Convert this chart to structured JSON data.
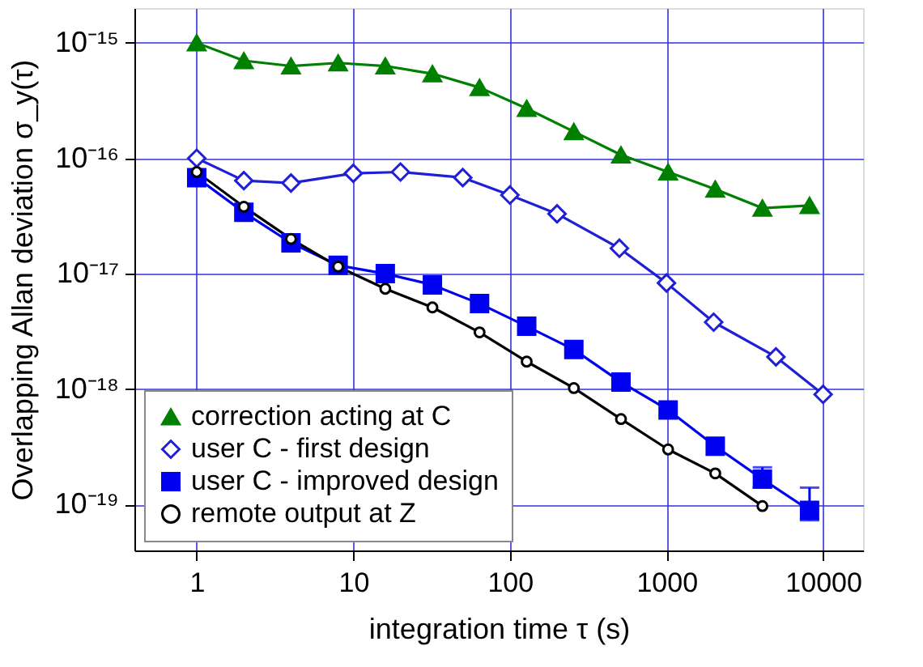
{
  "chart_data": {
    "type": "line",
    "xlabel": "integration time τ (s)",
    "ylabel": "Overlapping Allan deviation σ_y(τ)",
    "log": "xy",
    "grid": true,
    "legend": "bottom left",
    "line_style": "solid",
    "xlim": [
      0.4,
      18000
    ],
    "xticks": [
      1,
      10,
      100,
      1000,
      10000
    ],
    "ylim": [
      4e-20,
      2e-15
    ],
    "yticks": [
      {
        "value": 1e-19,
        "label": "10⁻¹⁹"
      },
      {
        "value": 1e-18,
        "label": "10⁻¹⁸"
      },
      {
        "value": 1e-17,
        "label": "10⁻¹⁷"
      },
      {
        "value": 1e-16,
        "label": "10⁻¹⁶"
      },
      {
        "value": 1e-15,
        "label": "10⁻¹⁵"
      }
    ],
    "series": [
      {
        "name": "correction acting at C",
        "color": "#008000",
        "marker": "triangle",
        "x": [
          1,
          2,
          4,
          8,
          16,
          32,
          64,
          128,
          256,
          512,
          1024,
          2048,
          4096,
          8192
        ],
        "values": [
          1e-15,
          7e-16,
          6.3e-16,
          6.7e-16,
          6.3e-16,
          5.4e-16,
          4.1e-16,
          2.7e-16,
          1.7e-16,
          1.07e-16,
          7.6e-17,
          5.4e-17,
          3.7e-17,
          3.9e-17
        ]
      },
      {
        "name": "user C - first design",
        "color": "#1f1fd6",
        "marker": "diamond",
        "x": [
          1,
          2,
          4,
          10,
          20,
          50,
          100,
          200,
          500,
          1000,
          2000,
          5000,
          10000
        ],
        "values": [
          1e-16,
          6.4e-17,
          6.1e-17,
          7.4e-17,
          7.6e-17,
          6.8e-17,
          4.8e-17,
          3.3e-17,
          1.66e-17,
          8.3e-18,
          3.8e-18,
          1.9e-18,
          9e-19
        ]
      },
      {
        "name": "user C - improved design",
        "color": "#0000f0",
        "marker": "square",
        "x": [
          1,
          2,
          4,
          8,
          16,
          32,
          64,
          128,
          256,
          512,
          1024,
          2048,
          4096,
          8192
        ],
        "values": [
          6.8e-17,
          3.4e-17,
          1.85e-17,
          1.18e-17,
          1e-17,
          8e-18,
          5.5e-18,
          3.5e-18,
          2.2e-18,
          1.15e-18,
          6.6e-19,
          3.2e-19,
          1.66e-19,
          8.9e-20
        ],
        "errors": [
          null,
          null,
          null,
          null,
          null,
          null,
          null,
          null,
          null,
          null,
          null,
          null,
          [
            1.4e-19,
            2.1e-19
          ],
          [
            7.3e-20,
            1.4e-19
          ]
        ]
      },
      {
        "name": "remote output at Z",
        "color": "#000000",
        "marker": "circle",
        "x": [
          1,
          2,
          4,
          8,
          16,
          32,
          64,
          128,
          256,
          512,
          1024,
          2048,
          4096
        ],
        "values": [
          7.6e-17,
          3.8e-17,
          2e-17,
          1.15e-17,
          7.4e-18,
          5.1e-18,
          3.1e-18,
          1.73e-18,
          1.02e-18,
          5.5e-19,
          3e-19,
          1.86e-19,
          9.7e-20
        ]
      }
    ]
  }
}
